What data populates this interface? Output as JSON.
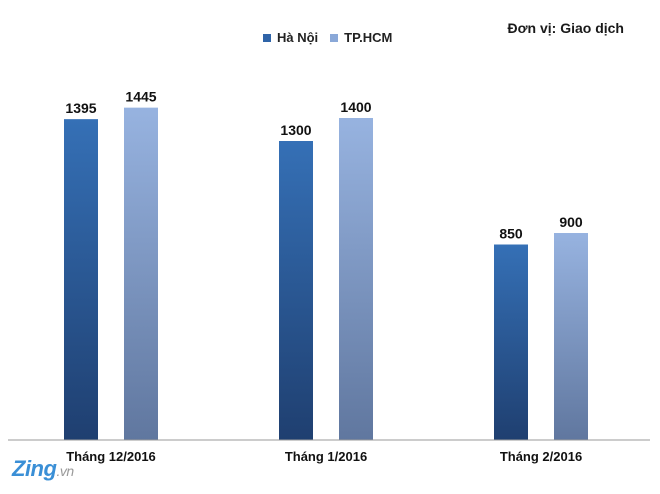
{
  "unit_label": "Đơn vị: Giao dịch",
  "logo": {
    "main": "Zing",
    "suffix": ".vn"
  },
  "colors": {
    "hanoi": "#2f64a8",
    "hcm": "#8aa8d8",
    "axis": "#9a9a9a"
  },
  "chart_data": {
    "type": "bar",
    "categories": [
      "Tháng 12/2016",
      "Tháng 1/2016",
      "Tháng 2/2016"
    ],
    "series": [
      {
        "name": "Hà Nội",
        "values": [
          1395,
          1300,
          850
        ]
      },
      {
        "name": "TP.HCM",
        "values": [
          1445,
          1400,
          900
        ]
      }
    ],
    "title": "",
    "xlabel": "",
    "ylabel": "",
    "ylim": [
      0,
      1600
    ],
    "grid": false,
    "legend_position": "top-center",
    "data_labels": true
  }
}
